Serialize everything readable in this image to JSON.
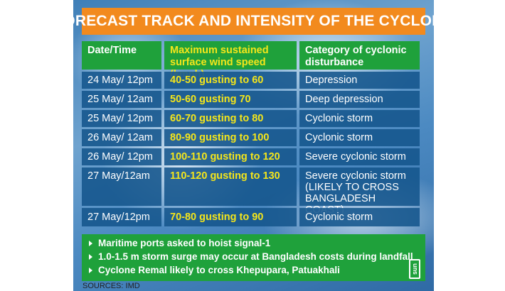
{
  "title": "FORECAST TRACK AND INTENSITY OF THE CYCLONE",
  "table": {
    "headers": [
      "Date/Time",
      "Maximum sustained surface wind speed (kmph)",
      "Category of cyclonic disturbance"
    ],
    "rows": [
      [
        "24 May/ 12pm",
        "40-50 gusting to 60",
        "Depression"
      ],
      [
        "25 May/ 12am",
        "50-60 gusting 70",
        "Deep depression"
      ],
      [
        "25 May/ 12pm",
        "60-70 gusting to 80",
        "Cyclonic storm"
      ],
      [
        "26 May/ 12am",
        "80-90 gusting to 100",
        "Cyclonic storm"
      ],
      [
        "26 May/ 12pm",
        "100-110 gusting to 120",
        "Severe cyclonic storm"
      ],
      [
        "27 May/12am",
        "110-120 gusting to 130",
        "Severe cyclonic storm (LIKELY TO CROSS BANGLADESH COAST)"
      ],
      [
        "27 May/12pm",
        "70-80 gusting to 90",
        "Cyclonic storm"
      ]
    ]
  },
  "notes": [
    "Maritime ports asked to hoist signal-1",
    "1.0-1.5 m storm surge may occur at Bangladesh costs during landfall",
    "Cyclone Remal likely to cross Khepupara, Patuakhali"
  ],
  "logo_text": "sun",
  "source": "SOURCES: IMD",
  "colors": {
    "title_bg": "#f28a1e",
    "header_bg": "#1fa13b",
    "row_bg": "#14558c",
    "highlight_text": "#f5e61a"
  }
}
